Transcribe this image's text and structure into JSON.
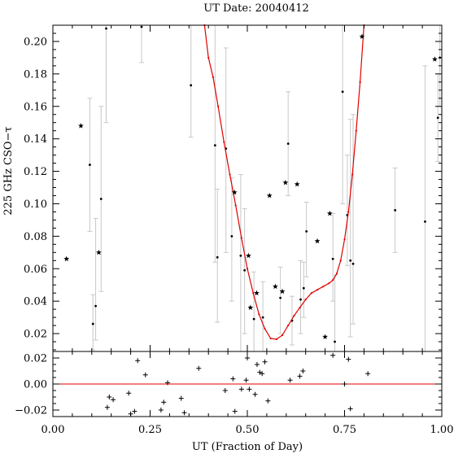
{
  "chart_data": [
    {
      "type": "scatter",
      "panel": "main",
      "title": "UT Date: 20040412",
      "ylabel": "225 GHz CSO−τ",
      "xlim": [
        0.0,
        1.0
      ],
      "ylim": [
        0.009,
        0.21
      ],
      "yticks": [
        0.02,
        0.04,
        0.06,
        0.08,
        0.1,
        0.12,
        0.14,
        0.16,
        0.18,
        0.2
      ],
      "ytick_labels": [
        "0.02",
        "0.04",
        "0.06",
        "0.08",
        "0.10",
        "0.12",
        "0.14",
        "0.16",
        "0.18",
        "0.20"
      ],
      "grid": false,
      "series": [
        {
          "marker": "star",
          "points": [
            {
              "x": 0.035,
              "y": 0.066
            },
            {
              "x": 0.072,
              "y": 0.148
            },
            {
              "x": 0.118,
              "y": 0.07
            },
            {
              "x": 0.467,
              "y": 0.107
            },
            {
              "x": 0.503,
              "y": 0.068
            },
            {
              "x": 0.508,
              "y": 0.036
            },
            {
              "x": 0.524,
              "y": 0.045
            },
            {
              "x": 0.557,
              "y": 0.105
            },
            {
              "x": 0.572,
              "y": 0.049
            },
            {
              "x": 0.59,
              "y": 0.046
            },
            {
              "x": 0.598,
              "y": 0.113
            },
            {
              "x": 0.628,
              "y": 0.112
            },
            {
              "x": 0.68,
              "y": 0.077
            },
            {
              "x": 0.7,
              "y": 0.018
            },
            {
              "x": 0.712,
              "y": 0.094
            },
            {
              "x": 0.795,
              "y": 0.203
            },
            {
              "x": 0.982,
              "y": 0.189
            }
          ]
        },
        {
          "marker": "dot_errorbar",
          "points": [
            {
              "x": 0.095,
              "y": 0.124,
              "lo": 0.083,
              "hi": 0.165
            },
            {
              "x": 0.103,
              "y": 0.026,
              "lo": 0.01,
              "hi": 0.044
            },
            {
              "x": 0.11,
              "y": 0.037,
              "lo": 0.016,
              "hi": 0.091
            },
            {
              "x": 0.124,
              "y": 0.103,
              "lo": 0.046,
              "hi": 0.16
            },
            {
              "x": 0.137,
              "y": 0.208,
              "lo": 0.15,
              "hi": 0.21
            },
            {
              "x": 0.228,
              "y": 0.209,
              "lo": 0.187,
              "hi": 0.21
            },
            {
              "x": 0.355,
              "y": 0.173,
              "lo": 0.141,
              "hi": 0.21
            },
            {
              "x": 0.417,
              "y": 0.136,
              "lo": 0.064,
              "hi": 0.21
            },
            {
              "x": 0.423,
              "y": 0.067,
              "lo": 0.027,
              "hi": 0.109
            },
            {
              "x": 0.445,
              "y": 0.134,
              "lo": 0.07,
              "hi": 0.196
            },
            {
              "x": 0.46,
              "y": 0.08,
              "lo": 0.04,
              "hi": 0.116
            },
            {
              "x": 0.483,
              "y": 0.068,
              "lo": 0.009,
              "hi": 0.118
            },
            {
              "x": 0.493,
              "y": 0.059,
              "lo": 0.02,
              "hi": 0.097
            },
            {
              "x": 0.517,
              "y": 0.029,
              "lo": 0.009,
              "hi": 0.058
            },
            {
              "x": 0.54,
              "y": 0.03,
              "lo": 0.009,
              "hi": 0.052
            },
            {
              "x": 0.585,
              "y": 0.042,
              "lo": 0.02,
              "hi": 0.061
            },
            {
              "x": 0.605,
              "y": 0.137,
              "lo": 0.105,
              "hi": 0.169
            },
            {
              "x": 0.615,
              "y": 0.028,
              "lo": 0.013,
              "hi": 0.043
            },
            {
              "x": 0.637,
              "y": 0.041,
              "lo": 0.02,
              "hi": 0.065
            },
            {
              "x": 0.645,
              "y": 0.048,
              "lo": 0.03,
              "hi": 0.064
            },
            {
              "x": 0.652,
              "y": 0.083,
              "lo": 0.055,
              "hi": 0.101
            },
            {
              "x": 0.72,
              "y": 0.066,
              "lo": 0.04,
              "hi": 0.094
            },
            {
              "x": 0.725,
              "y": 0.015,
              "lo": 0.009,
              "hi": 0.056
            },
            {
              "x": 0.745,
              "y": 0.169,
              "lo": 0.1,
              "hi": 0.21
            },
            {
              "x": 0.757,
              "y": 0.093,
              "lo": 0.062,
              "hi": 0.13
            },
            {
              "x": 0.765,
              "y": 0.065,
              "lo": 0.018,
              "hi": 0.152
            },
            {
              "x": 0.772,
              "y": 0.063,
              "lo": 0.026,
              "hi": 0.155
            },
            {
              "x": 0.88,
              "y": 0.096,
              "lo": 0.07,
              "hi": 0.122
            },
            {
              "x": 0.957,
              "y": 0.089,
              "lo": 0.009,
              "hi": 0.185
            },
            {
              "x": 0.99,
              "y": 0.153,
              "lo": 0.126,
              "hi": 0.18
            },
            {
              "x": 0.995,
              "y": 0.19,
              "lo": 0.16,
              "hi": 0.21
            }
          ]
        },
        {
          "type": "line",
          "color": "#e00000",
          "points": [
            {
              "x": 0.39,
              "y": 0.21
            },
            {
              "x": 0.4,
              "y": 0.19
            },
            {
              "x": 0.412,
              "y": 0.178
            },
            {
              "x": 0.425,
              "y": 0.16
            },
            {
              "x": 0.44,
              "y": 0.138
            },
            {
              "x": 0.455,
              "y": 0.118
            },
            {
              "x": 0.47,
              "y": 0.099
            },
            {
              "x": 0.485,
              "y": 0.079
            },
            {
              "x": 0.5,
              "y": 0.06
            },
            {
              "x": 0.515,
              "y": 0.045
            },
            {
              "x": 0.53,
              "y": 0.032
            },
            {
              "x": 0.545,
              "y": 0.023
            },
            {
              "x": 0.56,
              "y": 0.017
            },
            {
              "x": 0.575,
              "y": 0.0165
            },
            {
              "x": 0.59,
              "y": 0.019
            },
            {
              "x": 0.605,
              "y": 0.025
            },
            {
              "x": 0.62,
              "y": 0.031
            },
            {
              "x": 0.635,
              "y": 0.036
            },
            {
              "x": 0.65,
              "y": 0.041
            },
            {
              "x": 0.665,
              "y": 0.045
            },
            {
              "x": 0.68,
              "y": 0.047
            },
            {
              "x": 0.695,
              "y": 0.049
            },
            {
              "x": 0.71,
              "y": 0.051
            },
            {
              "x": 0.72,
              "y": 0.053
            },
            {
              "x": 0.73,
              "y": 0.057
            },
            {
              "x": 0.74,
              "y": 0.065
            },
            {
              "x": 0.75,
              "y": 0.078
            },
            {
              "x": 0.76,
              "y": 0.095
            },
            {
              "x": 0.77,
              "y": 0.118
            },
            {
              "x": 0.78,
              "y": 0.145
            },
            {
              "x": 0.79,
              "y": 0.175
            },
            {
              "x": 0.8,
              "y": 0.21
            }
          ]
        }
      ]
    },
    {
      "type": "scatter",
      "panel": "residuals",
      "xlabel": "UT (Fraction of Day)",
      "xlim": [
        0.0,
        1.0
      ],
      "ylim": [
        -0.025,
        0.025
      ],
      "xticks": [
        0.0,
        0.25,
        0.5,
        0.75,
        1.0
      ],
      "xtick_labels": [
        "0.00",
        "0.25",
        "0.50",
        "0.75",
        "1.00"
      ],
      "yticks": [
        -0.02,
        0.0,
        0.02
      ],
      "ytick_labels": [
        "−0.02",
        "0.00",
        "0.02"
      ],
      "reference_line": {
        "y": 0.0,
        "color": "#e00000"
      },
      "marker": "plus",
      "points": [
        {
          "x": 0.14,
          "y": -0.018
        },
        {
          "x": 0.145,
          "y": -0.01
        },
        {
          "x": 0.155,
          "y": -0.012
        },
        {
          "x": 0.195,
          "y": -0.007
        },
        {
          "x": 0.2,
          "y": -0.023
        },
        {
          "x": 0.21,
          "y": -0.021
        },
        {
          "x": 0.218,
          "y": 0.018
        },
        {
          "x": 0.238,
          "y": 0.007
        },
        {
          "x": 0.278,
          "y": -0.02
        },
        {
          "x": 0.285,
          "y": -0.014
        },
        {
          "x": 0.295,
          "y": 0.001
        },
        {
          "x": 0.33,
          "y": -0.011
        },
        {
          "x": 0.338,
          "y": -0.022
        },
        {
          "x": 0.375,
          "y": 0.012
        },
        {
          "x": 0.443,
          "y": -0.005
        },
        {
          "x": 0.463,
          "y": 0.004
        },
        {
          "x": 0.468,
          "y": -0.021
        },
        {
          "x": 0.485,
          "y": -0.004
        },
        {
          "x": 0.497,
          "y": 0.003
        },
        {
          "x": 0.5,
          "y": 0.02
        },
        {
          "x": 0.505,
          "y": -0.004
        },
        {
          "x": 0.52,
          "y": -0.008
        },
        {
          "x": 0.525,
          "y": 0.015
        },
        {
          "x": 0.532,
          "y": 0.009
        },
        {
          "x": 0.538,
          "y": 0.008
        },
        {
          "x": 0.545,
          "y": 0.017
        },
        {
          "x": 0.553,
          "y": -0.013
        },
        {
          "x": 0.61,
          "y": 0.003
        },
        {
          "x": 0.635,
          "y": 0.006
        },
        {
          "x": 0.643,
          "y": 0.01
        },
        {
          "x": 0.72,
          "y": 0.022
        },
        {
          "x": 0.75,
          "y": 0.0
        },
        {
          "x": 0.76,
          "y": 0.019
        },
        {
          "x": 0.765,
          "y": -0.019
        },
        {
          "x": 0.81,
          "y": 0.008
        }
      ]
    }
  ]
}
